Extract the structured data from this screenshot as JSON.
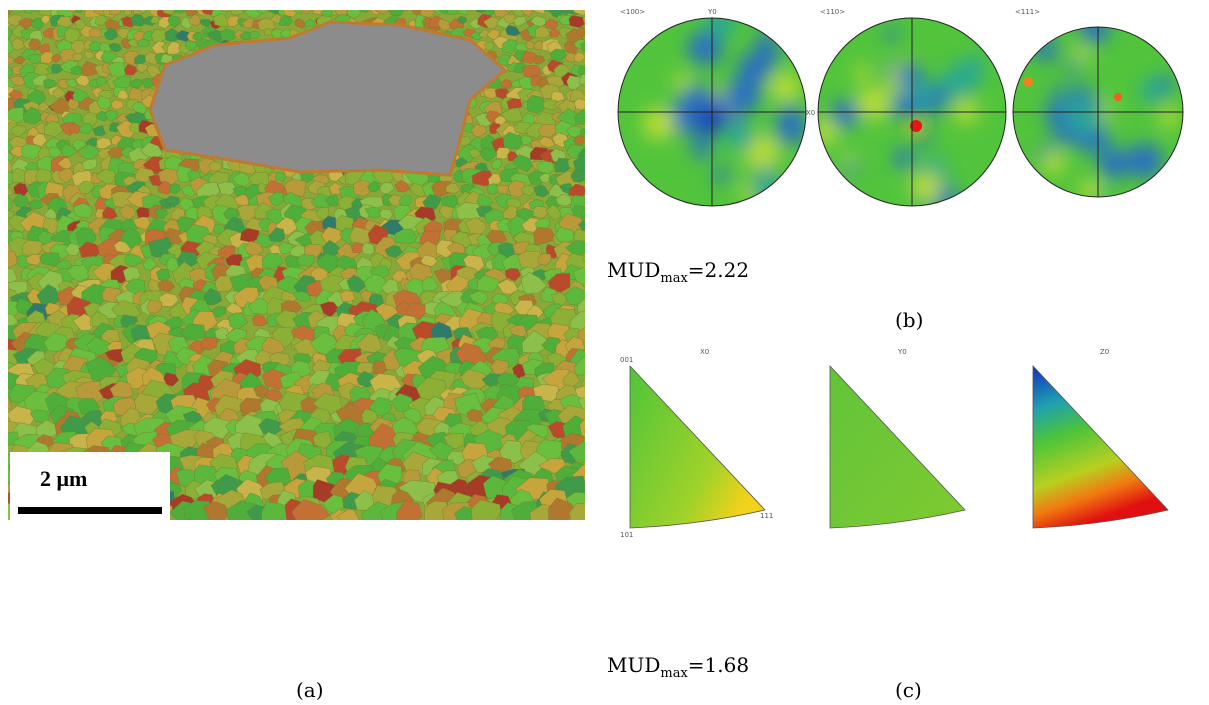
{
  "panel_a": {
    "scale_bar": "2 μm",
    "caption": "(a)"
  },
  "panel_b": {
    "pole_figures": [
      {
        "family": "<100>",
        "axis": "Y0"
      },
      {
        "family": "<110>",
        "axis": "X0"
      },
      {
        "family": "<111>"
      }
    ],
    "mud": {
      "label": "MUD",
      "subscript": "max",
      "value": "=2.22"
    },
    "caption": "(b)"
  },
  "panel_c": {
    "inverse_pole_figures": [
      {
        "axis": "X0",
        "corners": [
          "001",
          "101",
          "111"
        ]
      },
      {
        "axis": "Y0"
      },
      {
        "axis": "Z0"
      }
    ],
    "mud": {
      "label": "MUD",
      "subscript": "max",
      "value": "=1.68"
    },
    "caption": "(c)"
  }
}
